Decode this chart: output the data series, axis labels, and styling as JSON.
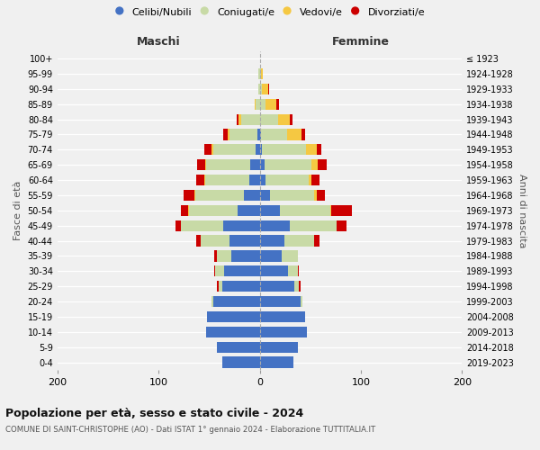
{
  "age_groups": [
    "0-4",
    "5-9",
    "10-14",
    "15-19",
    "20-24",
    "25-29",
    "30-34",
    "35-39",
    "40-44",
    "45-49",
    "50-54",
    "55-59",
    "60-64",
    "65-69",
    "70-74",
    "75-79",
    "80-84",
    "85-89",
    "90-94",
    "95-99",
    "100+"
  ],
  "birth_years": [
    "2019-2023",
    "2014-2018",
    "2009-2013",
    "2004-2008",
    "1999-2003",
    "1994-1998",
    "1989-1993",
    "1984-1988",
    "1979-1983",
    "1974-1978",
    "1969-1973",
    "1964-1968",
    "1959-1963",
    "1954-1958",
    "1949-1953",
    "1944-1948",
    "1939-1943",
    "1934-1938",
    "1929-1933",
    "1924-1928",
    "≤ 1923"
  ],
  "maschi": {
    "celibi": [
      37,
      42,
      53,
      52,
      46,
      37,
      35,
      28,
      30,
      36,
      22,
      16,
      10,
      9,
      4,
      2,
      0,
      0,
      0,
      0,
      0
    ],
    "coniugati": [
      0,
      0,
      0,
      0,
      2,
      4,
      9,
      14,
      28,
      42,
      48,
      48,
      44,
      44,
      42,
      28,
      18,
      4,
      1,
      1,
      0
    ],
    "vedovi": [
      0,
      0,
      0,
      0,
      0,
      0,
      0,
      0,
      0,
      0,
      1,
      1,
      1,
      1,
      2,
      2,
      3,
      1,
      0,
      0,
      0
    ],
    "divorziati": [
      0,
      0,
      0,
      0,
      0,
      1,
      1,
      3,
      5,
      5,
      7,
      10,
      8,
      8,
      7,
      4,
      2,
      0,
      0,
      0,
      0
    ]
  },
  "femmine": {
    "nubili": [
      33,
      38,
      47,
      45,
      40,
      34,
      28,
      22,
      24,
      30,
      20,
      10,
      6,
      5,
      2,
      1,
      0,
      0,
      0,
      0,
      0
    ],
    "coniugate": [
      0,
      0,
      0,
      0,
      2,
      5,
      10,
      16,
      30,
      46,
      50,
      44,
      42,
      46,
      44,
      26,
      18,
      6,
      2,
      1,
      0
    ],
    "vedove": [
      0,
      0,
      0,
      0,
      0,
      0,
      0,
      0,
      0,
      0,
      1,
      2,
      3,
      6,
      10,
      14,
      12,
      10,
      6,
      2,
      0
    ],
    "divorziate": [
      0,
      0,
      0,
      0,
      0,
      1,
      1,
      0,
      5,
      10,
      20,
      8,
      8,
      9,
      5,
      4,
      2,
      3,
      1,
      0,
      0
    ]
  },
  "colors": {
    "celibi": "#4472c4",
    "coniugati": "#c8daa6",
    "vedovi": "#f5c842",
    "divorziati": "#cc0000"
  },
  "title": "Popolazione per età, sesso e stato civile - 2024",
  "subtitle": "COMUNE DI SAINT-CHRISTOPHE (AO) - Dati ISTAT 1° gennaio 2024 - Elaborazione TUTTITALIA.IT",
  "xlabel_left": "Maschi",
  "xlabel_right": "Femmine",
  "ylabel_left": "Fasce di età",
  "ylabel_right": "Anni di nascita",
  "xlim": 200,
  "legend_labels": [
    "Celibi/Nubili",
    "Coniugati/e",
    "Vedovi/e",
    "Divorziati/e"
  ],
  "bg_color": "#f0f0f0"
}
